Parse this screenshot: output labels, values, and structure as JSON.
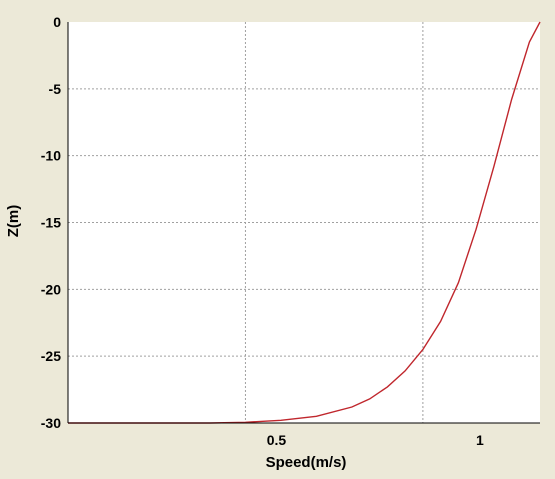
{
  "colors": {
    "background": "#ece9d8",
    "plot_background": "#ffffff",
    "grid": "#a0a0a0",
    "series": "#c0272d"
  },
  "chart_data": {
    "type": "line",
    "title": "",
    "xlabel": "Speed(m/s)",
    "ylabel": "Z(m)",
    "xlim": [
      0.0,
      1.33
    ],
    "ylim": [
      -30,
      0
    ],
    "grid": true,
    "legend": "none",
    "x_ticks": [
      {
        "value": 0.5,
        "label": "0.5"
      },
      {
        "value": 1.0,
        "label": "1"
      }
    ],
    "y_ticks": [
      {
        "value": 0,
        "label": "0"
      },
      {
        "value": -5,
        "label": "-5"
      },
      {
        "value": -10,
        "label": "-10"
      },
      {
        "value": -15,
        "label": "-15"
      },
      {
        "value": -20,
        "label": "-20"
      },
      {
        "value": -25,
        "label": "-25"
      },
      {
        "value": -30,
        "label": "-30"
      }
    ],
    "x_grid": [
      0.5,
      1.0
    ],
    "series": [
      {
        "color": "#c0272d",
        "points": [
          [
            0.0,
            -30.0
          ],
          [
            0.2,
            -30.0
          ],
          [
            0.4,
            -30.0
          ],
          [
            0.5,
            -29.95
          ],
          [
            0.6,
            -29.8
          ],
          [
            0.7,
            -29.5
          ],
          [
            0.8,
            -28.8
          ],
          [
            0.85,
            -28.2
          ],
          [
            0.9,
            -27.3
          ],
          [
            0.95,
            -26.1
          ],
          [
            1.0,
            -24.5
          ],
          [
            1.05,
            -22.4
          ],
          [
            1.1,
            -19.5
          ],
          [
            1.15,
            -15.5
          ],
          [
            1.2,
            -10.8
          ],
          [
            1.25,
            -5.8
          ],
          [
            1.3,
            -1.5
          ],
          [
            1.33,
            0.0
          ]
        ]
      }
    ]
  }
}
